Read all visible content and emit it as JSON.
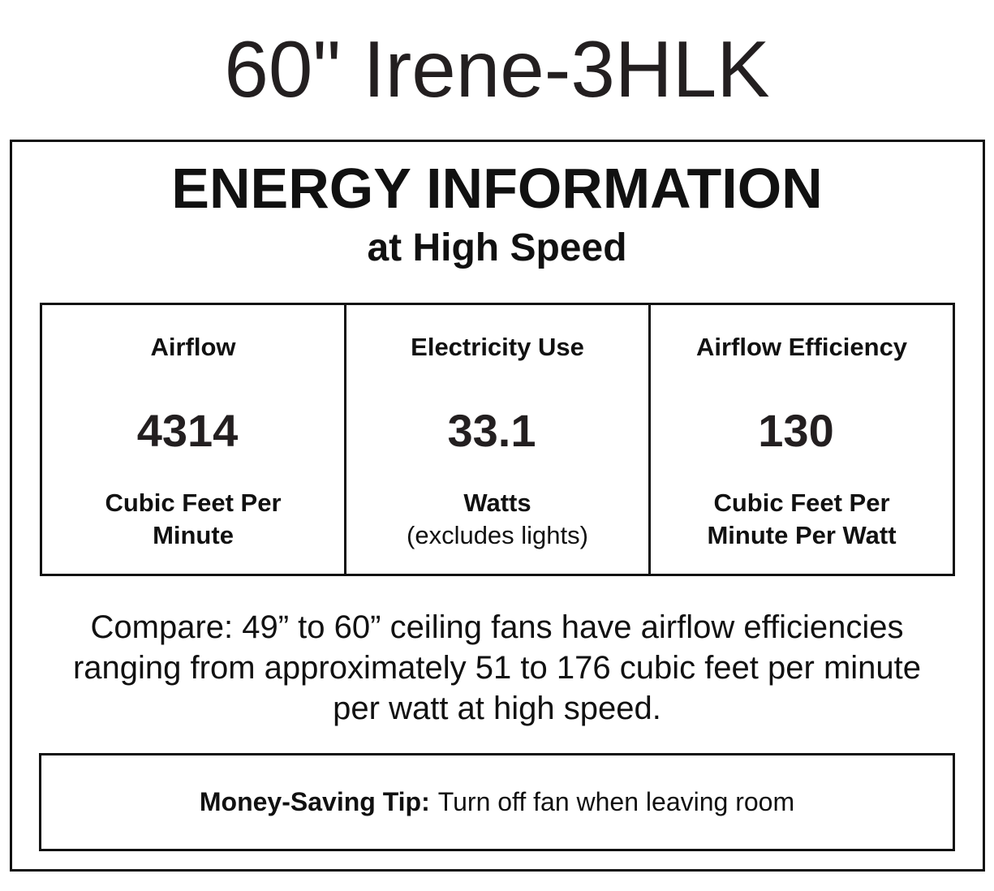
{
  "title": "60\" Irene-3HLK",
  "heading": "ENERGY INFORMATION",
  "subheading": "at High Speed",
  "metrics": [
    {
      "label": "Airflow",
      "value": "4314",
      "unit_line1": "Cubic Feet Per",
      "unit_line2": "Minute"
    },
    {
      "label": "Electricity Use",
      "value": "33.1",
      "unit_line1": "Watts",
      "unit_line2": "(excludes lights)"
    },
    {
      "label": "Airflow Efficiency",
      "value": "130",
      "unit_line1": "Cubic Feet Per",
      "unit_line2": "Minute Per Watt"
    }
  ],
  "compare": {
    "line1": "Compare: 49” to 60” ceiling fans have airflow efficiencies",
    "line2": "ranging from approximately 51 to 176 cubic feet per minute",
    "line3": "per watt at high speed."
  },
  "tip": {
    "label": "Money-Saving Tip:",
    "text": "Turn off fan when leaving room"
  }
}
